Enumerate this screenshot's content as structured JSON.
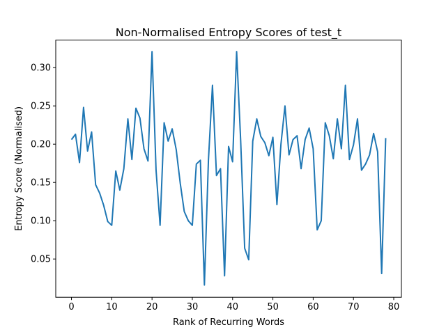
{
  "chart_data": {
    "type": "line",
    "title": "Non-Normalised Entropy Scores of test_t",
    "xlabel": "Rank of Recurring Words",
    "ylabel": "Entropy Score (Normalised)",
    "xlim": [
      -3.9,
      81.9
    ],
    "ylim": [
      0.0,
      0.336
    ],
    "xticks": [
      0,
      10,
      20,
      30,
      40,
      50,
      60,
      70,
      80
    ],
    "xtick_labels": [
      "0",
      "10",
      "20",
      "30",
      "40",
      "50",
      "60",
      "70",
      "80"
    ],
    "yticks": [
      0.05,
      0.1,
      0.15,
      0.2,
      0.25,
      0.3
    ],
    "ytick_labels": [
      "0.05",
      "0.10",
      "0.15",
      "0.20",
      "0.25",
      "0.30"
    ],
    "grid": false,
    "line_color": "#1f77b4",
    "series": [
      {
        "x": [
          0,
          1,
          2,
          3,
          4,
          5,
          6,
          7,
          8,
          9,
          10,
          11,
          12,
          13,
          14,
          15,
          16,
          17,
          18,
          19,
          20,
          21,
          22,
          23,
          24,
          25,
          26,
          27,
          28,
          29,
          30,
          31,
          32,
          33,
          34,
          35,
          36,
          37,
          38,
          39,
          40,
          41,
          42,
          43,
          44,
          45,
          46,
          47,
          48,
          49,
          50,
          51,
          52,
          53,
          54,
          55,
          56,
          57,
          58,
          59,
          60,
          61,
          62,
          63,
          64,
          65,
          66,
          67,
          68,
          69,
          70,
          71,
          72,
          73,
          74,
          75,
          76,
          77,
          78
        ],
        "values": [
          0.206,
          0.213,
          0.176,
          0.248,
          0.191,
          0.216,
          0.147,
          0.136,
          0.12,
          0.099,
          0.094,
          0.165,
          0.14,
          0.168,
          0.233,
          0.18,
          0.247,
          0.234,
          0.194,
          0.178,
          0.321,
          0.166,
          0.094,
          0.228,
          0.204,
          0.22,
          0.193,
          0.149,
          0.112,
          0.1,
          0.094,
          0.174,
          0.179,
          0.016,
          0.179,
          0.277,
          0.159,
          0.168,
          0.028,
          0.197,
          0.177,
          0.321,
          0.205,
          0.064,
          0.049,
          0.204,
          0.233,
          0.21,
          0.202,
          0.185,
          0.209,
          0.121,
          0.2,
          0.25,
          0.186,
          0.206,
          0.211,
          0.168,
          0.206,
          0.221,
          0.194,
          0.088,
          0.1,
          0.228,
          0.211,
          0.181,
          0.233,
          0.194,
          0.277,
          0.18,
          0.199,
          0.233,
          0.166,
          0.174,
          0.186,
          0.214,
          0.19,
          0.031,
          0.208
        ]
      }
    ]
  }
}
